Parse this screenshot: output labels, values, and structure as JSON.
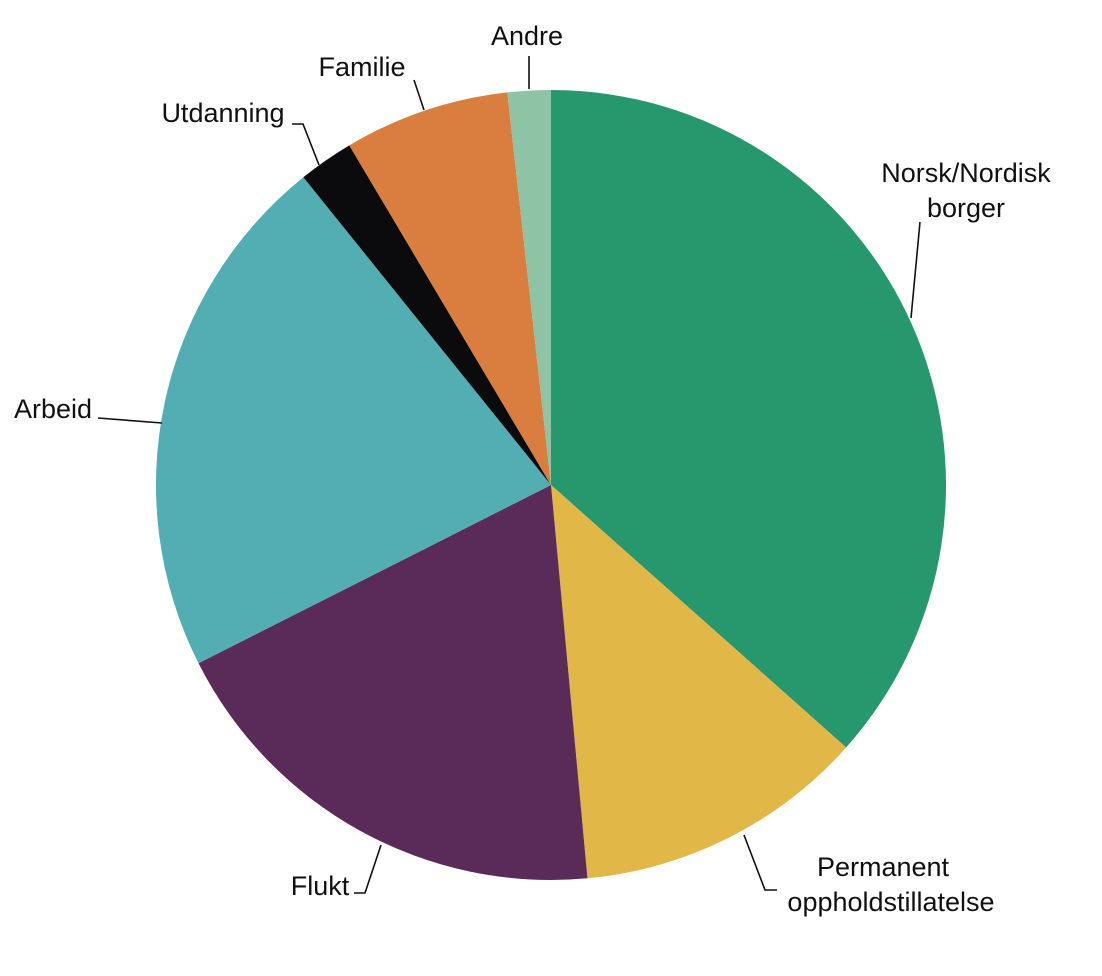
{
  "chart_data": {
    "type": "pie",
    "title": "",
    "start_angle_deg": 0,
    "direction": "clockwise",
    "slices": [
      {
        "label": "Norsk/Nordisk borger",
        "value": 37.3,
        "color": "#27976d"
      },
      {
        "label": "Permanent oppholdstillatelse",
        "value": 12.2,
        "color": "#e1b748"
      },
      {
        "label": "Flukt",
        "value": 19.4,
        "color": "#5a2b59"
      },
      {
        "label": "Arbeid",
        "value": 22.1,
        "color": "#52aeb2"
      },
      {
        "label": "Utdanning",
        "value": 2.3,
        "color": "#0b0b0d"
      },
      {
        "label": "Familie",
        "value": 6.9,
        "color": "#d97e3f"
      },
      {
        "label": "Andre",
        "value": 1.8,
        "color": "#8ec3a6"
      }
    ],
    "legend": "none",
    "labels": "outside-with-leader-lines"
  }
}
